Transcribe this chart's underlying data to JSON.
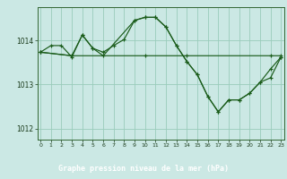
{
  "background_color": "#cbe8e4",
  "plot_bg_color": "#cbe8e4",
  "grid_color": "#99ccbb",
  "line_color": "#1a5c1a",
  "xlabel": "Graphe pression niveau de la mer (hPa)",
  "xlabel_bg": "#2d6b2d",
  "xlabel_fg": "#ffffff",
  "ylabel_color": "#1a3a1a",
  "tick_color": "#1a3a1a",
  "spine_color": "#336633",
  "ylim": [
    1011.75,
    1014.75
  ],
  "xlim": [
    -0.3,
    23.3
  ],
  "yticks": [
    1012,
    1013,
    1014
  ],
  "xticks": [
    0,
    1,
    2,
    3,
    4,
    5,
    6,
    7,
    8,
    9,
    10,
    11,
    12,
    13,
    14,
    15,
    16,
    17,
    18,
    19,
    20,
    21,
    22,
    23
  ],
  "series1_x": [
    0,
    1,
    2,
    3,
    4,
    5,
    6,
    7,
    8,
    9,
    10,
    11,
    12,
    13,
    14,
    15,
    16,
    17,
    18,
    19,
    20,
    21,
    22,
    23
  ],
  "series1_y": [
    1013.73,
    1013.88,
    1013.88,
    1013.62,
    1014.12,
    1013.82,
    1013.73,
    1013.88,
    1014.02,
    1014.45,
    1014.52,
    1014.52,
    1014.3,
    1013.88,
    1013.52,
    1013.22,
    1012.73,
    1012.38,
    1012.65,
    1012.65,
    1012.8,
    1013.05,
    1013.15,
    1013.62
  ],
  "series2_x": [
    0,
    3,
    10,
    14,
    22,
    23
  ],
  "series2_y": [
    1013.73,
    1013.65,
    1013.65,
    1013.65,
    1013.65,
    1013.65
  ],
  "series3_x": [
    0,
    3,
    4,
    5,
    6,
    9,
    10,
    11,
    12,
    13,
    14,
    15,
    16,
    17,
    18,
    19,
    20,
    21,
    22,
    23
  ],
  "series3_y": [
    1013.73,
    1013.65,
    1014.12,
    1013.82,
    1013.65,
    1014.45,
    1014.52,
    1014.52,
    1014.3,
    1013.88,
    1013.52,
    1013.22,
    1012.73,
    1012.38,
    1012.65,
    1012.65,
    1012.8,
    1013.05,
    1013.35,
    1013.62
  ]
}
